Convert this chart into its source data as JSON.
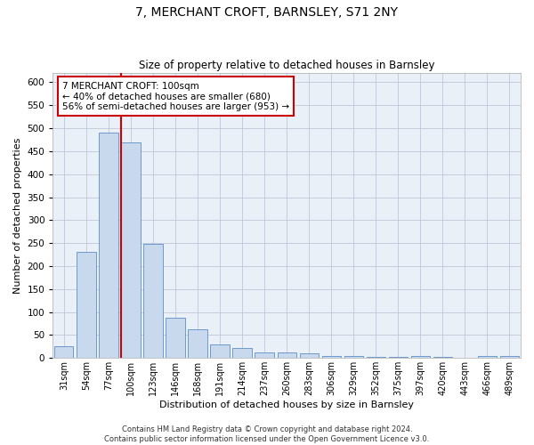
{
  "title": "7, MERCHANT CROFT, BARNSLEY, S71 2NY",
  "subtitle": "Size of property relative to detached houses in Barnsley",
  "xlabel": "Distribution of detached houses by size in Barnsley",
  "ylabel": "Number of detached properties",
  "categories": [
    "31sqm",
    "54sqm",
    "77sqm",
    "100sqm",
    "123sqm",
    "146sqm",
    "168sqm",
    "191sqm",
    "214sqm",
    "237sqm",
    "260sqm",
    "283sqm",
    "306sqm",
    "329sqm",
    "352sqm",
    "375sqm",
    "397sqm",
    "420sqm",
    "443sqm",
    "466sqm",
    "489sqm"
  ],
  "values": [
    25,
    230,
    490,
    470,
    248,
    88,
    62,
    30,
    22,
    12,
    12,
    10,
    5,
    4,
    3,
    3,
    5,
    3,
    0,
    5,
    4
  ],
  "bar_color": "#c8d9ee",
  "bar_edge_color": "#5b8dc8",
  "highlight_index": 3,
  "highlight_line_color": "#cc0000",
  "ylim": [
    0,
    620
  ],
  "yticks": [
    0,
    50,
    100,
    150,
    200,
    250,
    300,
    350,
    400,
    450,
    500,
    550,
    600
  ],
  "annotation_text": "7 MERCHANT CROFT: 100sqm\n← 40% of detached houses are smaller (680)\n56% of semi-detached houses are larger (953) →",
  "annotation_box_color": "#cc0000",
  "footer_text": "Contains HM Land Registry data © Crown copyright and database right 2024.\nContains public sector information licensed under the Open Government Licence v3.0.",
  "bg_color": "#ffffff",
  "grid_color": "#c0c8d8",
  "ax_bg_color": "#eaf0f8"
}
